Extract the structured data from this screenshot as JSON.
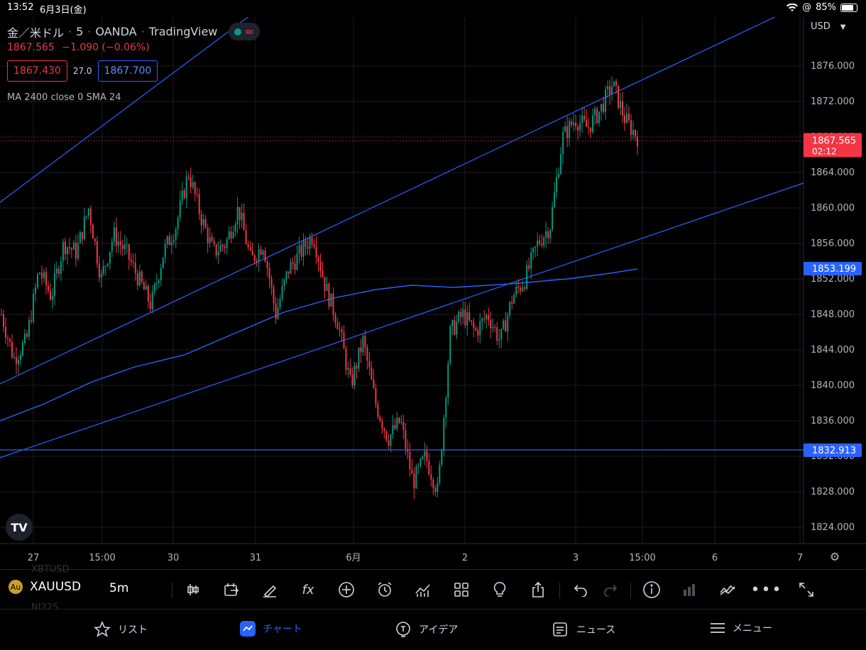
{
  "status_bar": {
    "time": "13:52",
    "date": "6月3日(金)",
    "battery": "85%"
  },
  "chart_header": {
    "symbol_name": "金／米ドル",
    "interval": "5",
    "exchange": "OANDA",
    "platform": "TradingView",
    "last_price": "1867.565",
    "change": "−1.090 (−0.06%)",
    "bid": "1867.430",
    "ask": "1867.700",
    "spread": "27.0",
    "indicator": "MA 2400 close 0 SMA 24",
    "currency": "USD"
  },
  "chart_data": {
    "type": "candlestick",
    "ylim": [
      1822,
      1878
    ],
    "y_ticks": [
      "1876.000",
      "1872.000",
      "1868.000",
      "1864.000",
      "1860.000",
      "1856.000",
      "1852.000",
      "1848.000",
      "1844.000",
      "1840.000",
      "1836.000",
      "1832.000",
      "1828.000",
      "1824.000"
    ],
    "x_ticks": [
      "27",
      "15:00",
      "30",
      "31",
      "6月",
      "2",
      "3",
      "15:00",
      "6",
      "7"
    ],
    "price_path": [
      1848,
      1843,
      1845,
      1853,
      1850,
      1856,
      1855,
      1860,
      1852,
      1857,
      1855,
      1852,
      1849,
      1855,
      1858,
      1864,
      1859,
      1855,
      1856,
      1860,
      1854,
      1856,
      1848,
      1853,
      1855,
      1857,
      1851,
      1847,
      1840,
      1845,
      1838,
      1834,
      1836,
      1829,
      1832,
      1828,
      1846,
      1848,
      1846,
      1848,
      1845,
      1850,
      1852,
      1856,
      1858,
      1868,
      1870,
      1869,
      1871,
      1874,
      1870,
      1868
    ],
    "current_price_label": "1867.565",
    "countdown": "02:12",
    "ma_label": "1853.199",
    "hline_label": "1832.913",
    "colors": {
      "up": "#089981",
      "down": "#f23645",
      "line": "#2962ff",
      "grid": "#1a1c22"
    }
  },
  "bottom_toolbar": {
    "symbol": "XAUUSD",
    "interval": "5m",
    "ghost_above": "XBTUSD",
    "ghost_below": "NI225",
    "tools": [
      "candles-icon",
      "compare-icon",
      "draw-icon",
      "indicators-icon",
      "add-icon",
      "alert-icon",
      "replay-icon",
      "layout-icon",
      "ideas-icon",
      "share-icon",
      "undo-icon",
      "redo-icon",
      "info-icon",
      "volume-icon",
      "fit-icon",
      "more-icon",
      "fullscreen-icon"
    ]
  },
  "tab_bar": {
    "list": "リスト",
    "chart": "チャート",
    "ideas": "アイデア",
    "news": "ニュース",
    "menu": "メニュー"
  }
}
